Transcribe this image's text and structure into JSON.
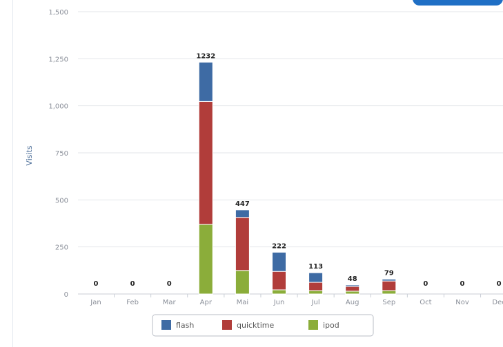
{
  "chart_data": {
    "type": "bar",
    "stacked": true,
    "ylabel": "Visits",
    "ylim": [
      0,
      1500
    ],
    "yticks": [
      "0",
      "250",
      "500",
      "750",
      "1,000",
      "1,250",
      "1,500"
    ],
    "categories": [
      "Jan",
      "Feb",
      "Mar",
      "Apr",
      "Mai",
      "Jun",
      "Jul",
      "Aug",
      "Sep",
      "Oct",
      "Nov",
      "Dec"
    ],
    "totals": [
      0,
      0,
      0,
      1232,
      447,
      222,
      113,
      48,
      79,
      0,
      0,
      0
    ],
    "series": [
      {
        "name": "ipod",
        "color": "#8bad3a",
        "values": [
          0,
          0,
          0,
          370,
          125,
          22,
          18,
          15,
          18,
          0,
          0,
          0
        ]
      },
      {
        "name": "quicktime",
        "color": "#b13d3a",
        "values": [
          0,
          0,
          0,
          653,
          282,
          98,
          44,
          25,
          51,
          0,
          0,
          0
        ]
      },
      {
        "name": "flash",
        "color": "#3e6ba4",
        "values": [
          0,
          0,
          0,
          209,
          40,
          102,
          51,
          8,
          10,
          0,
          0,
          0
        ]
      }
    ],
    "grid": true,
    "legend": "bottom-center"
  }
}
